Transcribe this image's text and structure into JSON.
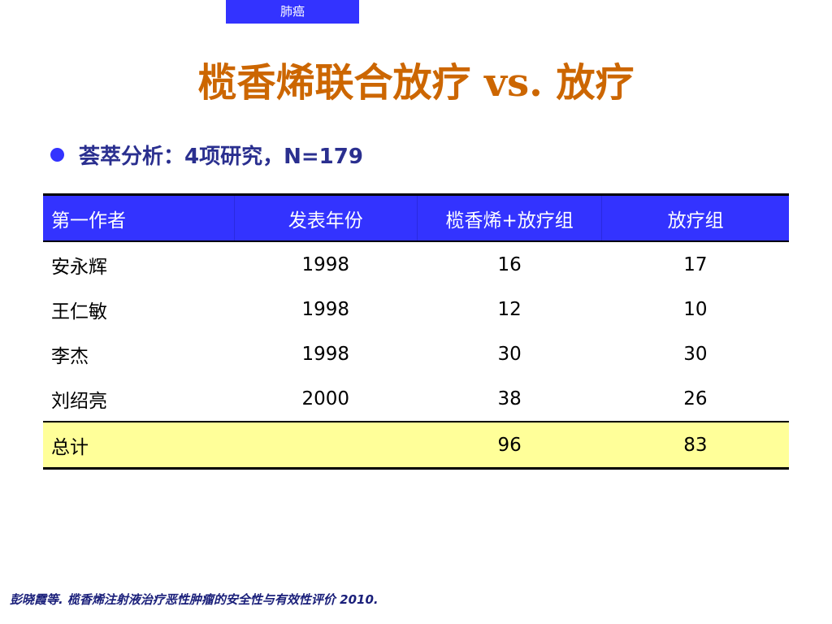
{
  "header": {
    "tag": "肺癌",
    "title": "榄香烯联合放疗 vs. 放疗"
  },
  "bullet": {
    "text": "荟萃分析：4项研究，N=179"
  },
  "table": {
    "columns": [
      "第一作者",
      "发表年份",
      "榄香烯+放疗组",
      "放疗组"
    ],
    "rows": [
      {
        "author": "安永辉",
        "year": "1998",
        "combo": "16",
        "radio": "17"
      },
      {
        "author": "王仁敏",
        "year": "1998",
        "combo": "12",
        "radio": "10"
      },
      {
        "author": "李杰",
        "year": "1998",
        "combo": "30",
        "radio": "30"
      },
      {
        "author": "刘绍亮",
        "year": "2000",
        "combo": "38",
        "radio": "26"
      }
    ],
    "total": {
      "label": "总计",
      "year": "",
      "combo": "96",
      "radio": "83"
    }
  },
  "footnote": "彭晓霞等. 榄香烯注射液治疗恶性肿瘤的安全性与有效性评价 2010.",
  "colors": {
    "accent_blue": "#3333ff",
    "title_orange": "#cc6600",
    "total_row_yellow": "#ffff99",
    "bullet_text_navy": "#2a2f8f"
  }
}
